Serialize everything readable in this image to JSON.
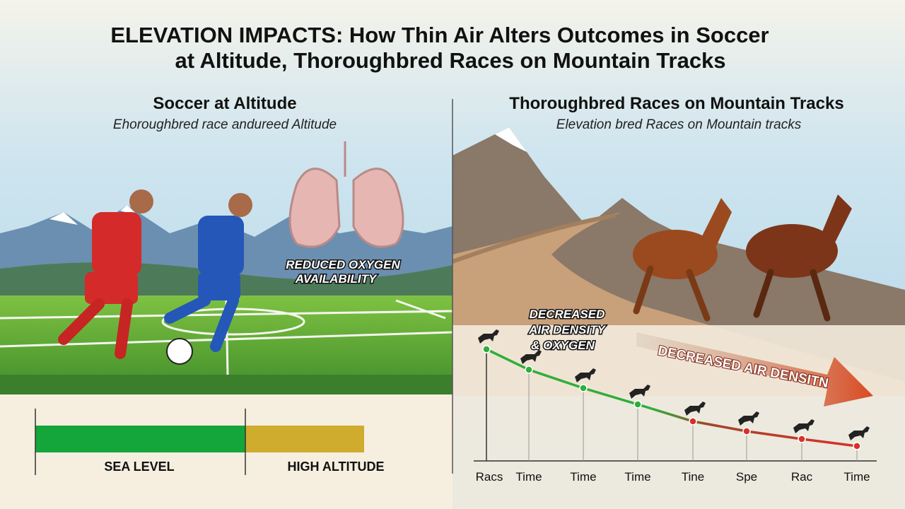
{
  "title": {
    "lines": [
      "ELEVATION IMPACTS: How Thin Air Alters Outcomes in Soccer",
      "at Altitude, Thoroughbred Races on Mountain Tracks"
    ]
  },
  "left_panel": {
    "heading": "Soccer at Altitude",
    "subtitle": "Ehoroughbred race andureed Altitude",
    "callout": [
      "REDUCED OXYGEN",
      "AVAILABILITY"
    ],
    "bar_labels": [
      "SEA LEVEL",
      "HIGH ALTITUDE"
    ]
  },
  "right_panel": {
    "heading": "Thoroughbred Races on Mountain Tracks",
    "subtitle": "Elevation bred Races on Mountain tracks",
    "callout": [
      "DECREASED",
      "AIR DENSITY",
      "& OXYGEN"
    ],
    "arrow_label": "DECREASED AIR DENSITN",
    "x_labels": [
      "Racs",
      "Time",
      "Time",
      "Time",
      "Tine",
      "Spe",
      "Rac",
      "Time"
    ]
  }
}
